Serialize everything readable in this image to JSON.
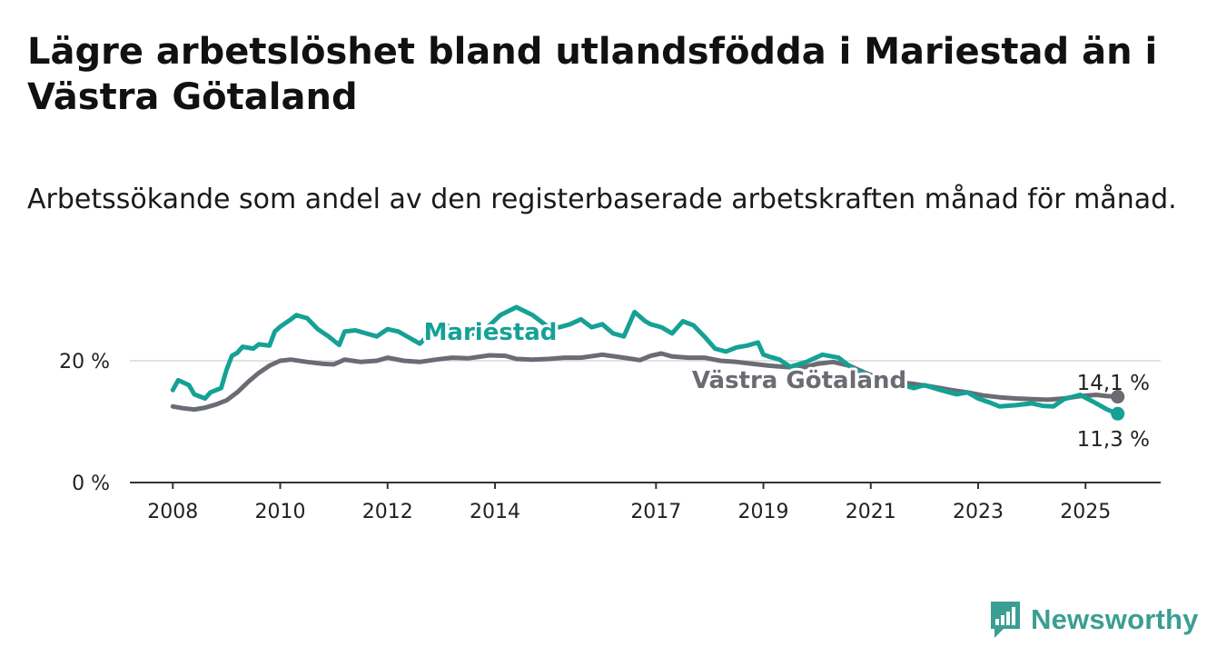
{
  "title": "Lägre arbetslöshet bland utlandsfödda i Mariestad än i Västra Götaland",
  "subtitle": "Arbetssökande som andel av den registerbaserade arbetskraften månad för månad.",
  "brand": {
    "name": "Newsworthy",
    "color": "#3a9e92",
    "icon": "bar-chart-speech-bubble-icon"
  },
  "colors": {
    "mariestad": "#15a195",
    "vg": "#6b6b73",
    "axis": "#333333",
    "grid": "#d9d9d9"
  },
  "chart_data": {
    "type": "line",
    "title": "Lägre arbetslöshet bland utlandsfödda i Mariestad än i Västra Götaland",
    "subtitle": "Arbetssökande som andel av den registerbaserade arbetskraften månad för månad.",
    "xlabel": "",
    "ylabel": "",
    "xlim": [
      2007.2,
      2026.4
    ],
    "ylim": [
      0,
      30
    ],
    "grid": true,
    "legend": "inline labels",
    "x_ticks": [
      {
        "value": 2008,
        "label": "2008"
      },
      {
        "value": 2010,
        "label": "2010"
      },
      {
        "value": 2012,
        "label": "2012"
      },
      {
        "value": 2014,
        "label": "2014"
      },
      {
        "value": 2017,
        "label": "2017"
      },
      {
        "value": 2019,
        "label": "2019"
      },
      {
        "value": 2021,
        "label": "2021"
      },
      {
        "value": 2023,
        "label": "2023"
      },
      {
        "value": 2025,
        "label": "2025"
      }
    ],
    "y_ticks": [
      {
        "value": 0,
        "label": "0 %"
      },
      {
        "value": 20,
        "label": "20 %"
      }
    ],
    "end_labels": {
      "vg": "14,1 %",
      "mariestad": "11,3 %"
    },
    "series": [
      {
        "name": "Mariestad",
        "x": [
          2008.0,
          2008.1,
          2008.3,
          2008.4,
          2008.6,
          2008.7,
          2008.9,
          2009.0,
          2009.1,
          2009.2,
          2009.3,
          2009.5,
          2009.6,
          2009.8,
          2009.9,
          2010.0,
          2010.2,
          2010.3,
          2010.5,
          2010.7,
          2010.9,
          2011.1,
          2011.2,
          2011.4,
          2011.6,
          2011.8,
          2012.0,
          2012.2,
          2012.4,
          2012.6,
          2012.8,
          2013.0,
          2013.2,
          2013.5,
          2013.8,
          2014.1,
          2014.4,
          2014.7,
          2015.0,
          2015.2,
          2015.4,
          2015.6,
          2015.8,
          2016.0,
          2016.2,
          2016.4,
          2016.6,
          2016.8,
          2016.9,
          2017.1,
          2017.3,
          2017.5,
          2017.7,
          2017.9,
          2018.1,
          2018.3,
          2018.5,
          2018.7,
          2018.9,
          2019.0,
          2019.1,
          2019.3,
          2019.5,
          2019.8,
          2020.1,
          2020.4,
          2020.7,
          2021.0,
          2021.3,
          2021.6,
          2021.8,
          2022.0,
          2022.3,
          2022.6,
          2022.8,
          2023.0,
          2023.2,
          2023.4,
          2023.7,
          2024.0,
          2024.2,
          2024.4,
          2024.6,
          2024.9,
          2025.2,
          2025.4,
          2025.6
        ],
        "y": [
          15.2,
          16.8,
          16.0,
          14.5,
          13.8,
          14.8,
          15.5,
          18.5,
          20.8,
          21.3,
          22.3,
          22.0,
          22.7,
          22.5,
          24.8,
          25.6,
          26.8,
          27.5,
          27.0,
          25.2,
          24.0,
          22.6,
          24.8,
          25.0,
          24.5,
          24.0,
          25.2,
          24.8,
          23.8,
          22.8,
          24.5,
          26.0,
          25.5,
          24.2,
          25.0,
          27.5,
          28.8,
          27.5,
          25.5,
          25.5,
          26.0,
          26.8,
          25.5,
          26.0,
          24.5,
          24.0,
          28.0,
          26.5,
          26.0,
          25.5,
          24.5,
          26.5,
          25.8,
          24.0,
          22.0,
          21.5,
          22.2,
          22.5,
          23.0,
          21.0,
          20.7,
          20.2,
          19.0,
          19.8,
          21.0,
          20.5,
          18.5,
          17.5,
          16.5,
          16.0,
          15.5,
          16.0,
          15.2,
          14.5,
          14.8,
          13.8,
          13.2,
          12.5,
          12.7,
          13.0,
          12.6,
          12.5,
          13.7,
          14.4,
          13.0,
          12.0,
          11.3
        ],
        "color": "#15a195"
      },
      {
        "name": "Västra Götaland",
        "x": [
          2008.0,
          2008.2,
          2008.4,
          2008.6,
          2008.8,
          2009.0,
          2009.2,
          2009.4,
          2009.6,
          2009.8,
          2010.0,
          2010.2,
          2010.5,
          2010.8,
          2011.0,
          2011.2,
          2011.5,
          2011.8,
          2012.0,
          2012.3,
          2012.6,
          2012.9,
          2013.2,
          2013.5,
          2013.9,
          2014.2,
          2014.4,
          2014.7,
          2015.0,
          2015.3,
          2015.6,
          2016.0,
          2016.4,
          2016.7,
          2016.9,
          2017.1,
          2017.3,
          2017.6,
          2017.9,
          2018.2,
          2018.5,
          2018.8,
          2019.1,
          2019.4,
          2019.7,
          2020.0,
          2020.3,
          2020.6,
          2020.9,
          2021.2,
          2021.5,
          2021.8,
          2022.1,
          2022.5,
          2022.8,
          2023.1,
          2023.4,
          2023.7,
          2024.0,
          2024.3,
          2024.6,
          2024.9,
          2025.2,
          2025.4,
          2025.6
        ],
        "y": [
          12.5,
          12.2,
          12.0,
          12.3,
          12.8,
          13.5,
          14.8,
          16.5,
          18.0,
          19.2,
          20.0,
          20.2,
          19.8,
          19.5,
          19.4,
          20.2,
          19.8,
          20.0,
          20.5,
          20.0,
          19.8,
          20.2,
          20.5,
          20.4,
          20.9,
          20.8,
          20.3,
          20.2,
          20.3,
          20.5,
          20.5,
          21.0,
          20.5,
          20.1,
          20.8,
          21.2,
          20.7,
          20.5,
          20.5,
          20.0,
          19.8,
          19.5,
          19.2,
          19.0,
          18.8,
          19.5,
          19.8,
          19.2,
          18.0,
          17.0,
          16.5,
          16.2,
          15.8,
          15.2,
          14.8,
          14.3,
          14.0,
          13.8,
          13.7,
          13.6,
          13.8,
          14.2,
          14.4,
          14.2,
          14.1
        ],
        "color": "#6b6b73"
      }
    ]
  }
}
